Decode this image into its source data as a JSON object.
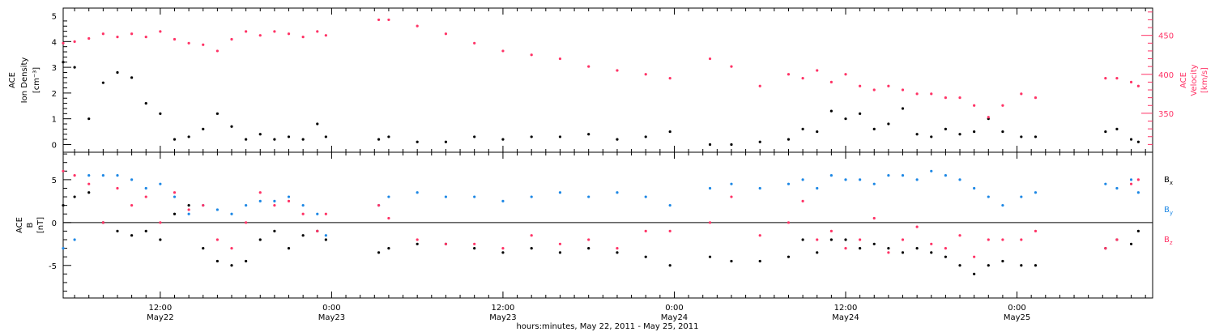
{
  "colors": {
    "density": "#000000",
    "velocity": "#ff3366",
    "bx": "#000000",
    "by": "#1e88e5",
    "bz": "#ff3366"
  },
  "xaxis": {
    "title": "hours:minutes, May 22, 2011 - May 25, 2011",
    "ticks": [
      {
        "t": 12,
        "label1": "12:00",
        "label2": "May22"
      },
      {
        "t": 24,
        "label1": "0:00",
        "label2": "May23"
      },
      {
        "t": 36,
        "label1": "12:00",
        "label2": "May23"
      },
      {
        "t": 48,
        "label1": "0:00",
        "label2": "May24"
      },
      {
        "t": 60,
        "label1": "12:00",
        "label2": "May24"
      },
      {
        "t": 72,
        "label1": "0:00",
        "label2": "May25"
      }
    ],
    "range_hours": [
      5.2,
      81.5
    ]
  },
  "panel_top": {
    "left_label_lines": [
      "ACE",
      "Ion Density",
      "[cm⁻³]"
    ],
    "right_label_lines": [
      "ACE",
      "Velocity",
      "[km/s]"
    ],
    "left_ticks": [
      "0",
      "1",
      "2",
      "3",
      "4",
      "5"
    ],
    "right_ticks": [
      "350",
      "400",
      "450"
    ],
    "left_range": [
      -0.3,
      5.3
    ],
    "right_range": [
      300,
      485
    ]
  },
  "panel_bottom": {
    "left_label_lines": [
      "ACE",
      "B",
      "[nT]"
    ],
    "left_ticks": [
      "-5",
      "0",
      "5"
    ],
    "range": [
      -8.8,
      8.2
    ],
    "legend": [
      {
        "label": "B",
        "sub": "x",
        "color": "#000000"
      },
      {
        "label": "B",
        "sub": "y",
        "color": "#1e88e5"
      },
      {
        "label": "B",
        "sub": "z",
        "color": "#ff3366"
      }
    ]
  },
  "chart_data": [
    {
      "type": "scatter",
      "title": "",
      "xlabel": "hours:minutes, May 22, 2011 - May 25, 2011",
      "ylabel": "ACE Ion Density [cm⁻³]",
      "y2label": "ACE Velocity [km/s]",
      "x_units": "hours since May 22 2011 00:00",
      "ylim": [
        -0.3,
        5.3
      ],
      "y2lim": [
        300,
        485
      ],
      "series": [
        {
          "name": "ACE Ion Density",
          "axis": "left",
          "x": [
            5.2,
            6,
            7,
            8,
            9,
            10,
            11,
            12,
            13,
            14,
            15,
            16,
            17,
            18,
            19,
            20,
            21,
            22,
            23,
            23.6,
            27.3,
            28,
            30,
            32,
            34,
            36,
            38,
            40,
            42,
            44,
            46,
            47.7,
            50.5,
            52,
            54,
            56,
            57,
            58,
            59,
            60,
            61,
            62,
            63,
            64,
            65,
            66,
            67,
            68,
            69,
            70,
            71,
            72.3,
            73.3,
            78.2,
            79,
            80,
            80.5
          ],
          "y": [
            3.2,
            3.0,
            1.0,
            2.4,
            2.8,
            2.6,
            1.6,
            1.2,
            0.2,
            0.3,
            0.6,
            1.2,
            0.7,
            0.2,
            0.4,
            0.2,
            0.3,
            0.2,
            0.8,
            0.3,
            0.2,
            0.3,
            0.1,
            0.1,
            0.3,
            0.2,
            0.3,
            0.3,
            0.4,
            0.2,
            0.3,
            0.5,
            0.0,
            0.0,
            0.1,
            0.2,
            0.6,
            0.5,
            1.3,
            1.0,
            1.2,
            0.6,
            0.8,
            1.4,
            0.4,
            0.3,
            0.6,
            0.4,
            0.5,
            1.0,
            0.5,
            0.3,
            0.3,
            0.5,
            0.6,
            0.2,
            0.1
          ]
        },
        {
          "name": "ACE Velocity",
          "axis": "right",
          "x": [
            5.2,
            6,
            7,
            8,
            9,
            10,
            11,
            12,
            13,
            14,
            15,
            16,
            17,
            18,
            19,
            20,
            21,
            22,
            23,
            23.6,
            27.3,
            28,
            30,
            32,
            34,
            36,
            38,
            40,
            42,
            44,
            46,
            47.7,
            50.5,
            52,
            54,
            56,
            57,
            58,
            59,
            60,
            61,
            62,
            63,
            64,
            65,
            66,
            67,
            68,
            69,
            70,
            71,
            72.3,
            73.3,
            78.2,
            79,
            80,
            80.5
          ],
          "y": [
            440,
            442,
            446,
            452,
            448,
            452,
            448,
            455,
            445,
            440,
            438,
            430,
            445,
            455,
            450,
            455,
            452,
            448,
            455,
            450,
            470,
            470,
            462,
            452,
            440,
            430,
            425,
            420,
            410,
            405,
            400,
            395,
            420,
            410,
            385,
            400,
            395,
            405,
            390,
            400,
            385,
            380,
            385,
            380,
            375,
            375,
            370,
            370,
            360,
            345,
            360,
            375,
            370,
            395,
            395,
            390,
            385
          ]
        }
      ]
    },
    {
      "type": "scatter",
      "title": "",
      "xlabel": "hours:minutes, May 22, 2011 - May 25, 2011",
      "ylabel": "ACE B [nT]",
      "x_units": "hours since May 22 2011 00:00",
      "ylim": [
        -8.8,
        8.2
      ],
      "series": [
        {
          "name": "Bx",
          "x": [
            5.2,
            6,
            7,
            8,
            9,
            10,
            11,
            12,
            13,
            14,
            15,
            16,
            17,
            18,
            19,
            20,
            21,
            22,
            23,
            23.6,
            27.3,
            28,
            30,
            32,
            34,
            36,
            38,
            40,
            42,
            44,
            46,
            47.7,
            50.5,
            52,
            54,
            56,
            57,
            58,
            59,
            60,
            61,
            62,
            63,
            64,
            65,
            66,
            67,
            68,
            69,
            70,
            71,
            72.3,
            73.3,
            78.2,
            79,
            80,
            80.5
          ],
          "y": [
            2.0,
            3.0,
            3.5,
            0.0,
            -1.0,
            -1.5,
            -1.0,
            -2.0,
            1.0,
            2.0,
            -3.0,
            -4.5,
            -5.0,
            -4.5,
            -2.0,
            -1.0,
            -3.0,
            -1.5,
            -1.0,
            -2.0,
            -3.5,
            -3.0,
            -2.5,
            -2.5,
            -3.0,
            -3.5,
            -3.0,
            -3.5,
            -3.0,
            -3.5,
            -4.0,
            -5.0,
            -4.0,
            -4.5,
            -4.5,
            -4.0,
            -2.0,
            -3.5,
            -2.0,
            -2.0,
            -3.0,
            -2.5,
            -3.0,
            -3.5,
            -3.0,
            -3.5,
            -4.0,
            -5.0,
            -6.0,
            -5.0,
            -4.5,
            -5.0,
            -5.0,
            -3.0,
            -2.0,
            -2.5,
            -1.0
          ]
        },
        {
          "name": "By",
          "x": [
            5.2,
            6,
            7,
            8,
            9,
            10,
            11,
            12,
            13,
            14,
            15,
            16,
            17,
            18,
            19,
            20,
            21,
            22,
            23,
            23.6,
            27.3,
            28,
            30,
            32,
            34,
            36,
            38,
            40,
            42,
            44,
            46,
            47.7,
            50.5,
            52,
            54,
            56,
            57,
            58,
            59,
            60,
            61,
            62,
            63,
            64,
            65,
            66,
            67,
            68,
            69,
            70,
            71,
            72.3,
            73.3,
            78.2,
            79,
            80,
            80.5
          ],
          "y": [
            -3.0,
            -2.0,
            5.5,
            5.5,
            5.5,
            5.0,
            4.0,
            4.5,
            3.0,
            1.0,
            2.0,
            1.5,
            1.0,
            2.0,
            2.5,
            2.5,
            3.0,
            2.0,
            1.0,
            -1.5,
            2.0,
            3.0,
            3.5,
            3.0,
            3.0,
            2.5,
            3.0,
            3.5,
            3.0,
            3.5,
            3.0,
            2.0,
            4.0,
            4.5,
            4.0,
            4.5,
            5.0,
            4.0,
            5.5,
            5.0,
            5.0,
            4.5,
            5.5,
            5.5,
            5.0,
            6.0,
            5.5,
            5.0,
            4.0,
            3.0,
            2.0,
            3.0,
            3.5,
            4.5,
            4.0,
            5.0,
            3.5
          ]
        },
        {
          "name": "Bz",
          "x": [
            5.2,
            6,
            7,
            8,
            9,
            10,
            11,
            12,
            13,
            14,
            15,
            16,
            17,
            18,
            19,
            20,
            21,
            22,
            23,
            23.6,
            27.3,
            28,
            30,
            32,
            34,
            36,
            38,
            40,
            42,
            44,
            46,
            47.7,
            50.5,
            52,
            54,
            56,
            57,
            58,
            59,
            60,
            61,
            62,
            63,
            64,
            65,
            66,
            67,
            68,
            69,
            70,
            71,
            72.3,
            73.3,
            78.2,
            79,
            80,
            80.5
          ],
          "y": [
            6.0,
            5.5,
            4.5,
            0.0,
            4.0,
            2.0,
            3.0,
            0.0,
            3.5,
            1.5,
            2.0,
            -2.0,
            -3.0,
            0.0,
            3.5,
            2.0,
            2.5,
            1.0,
            -1.0,
            1.0,
            2.0,
            0.5,
            -2.0,
            -2.5,
            -2.5,
            -3.0,
            -1.5,
            -2.5,
            -2.0,
            -3.0,
            -1.0,
            -1.0,
            0.0,
            3.0,
            -1.5,
            0.0,
            2.5,
            -2.0,
            -1.0,
            -3.0,
            -2.0,
            0.5,
            -3.5,
            -2.0,
            -0.5,
            -2.5,
            -3.0,
            -1.5,
            -4.0,
            -2.0,
            -2.0,
            -2.0,
            -1.0,
            -3.0,
            -2.0,
            4.5,
            5.0
          ]
        }
      ]
    }
  ]
}
